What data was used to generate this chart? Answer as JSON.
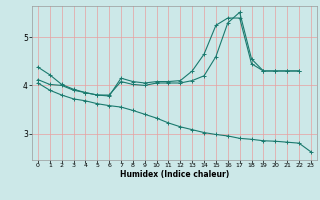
{
  "xlabel": "Humidex (Indice chaleur)",
  "bg_color": "#cce8e8",
  "grid_color": "#e8a0a0",
  "line_color": "#1a7a6e",
  "xlim": [
    -0.5,
    23.5
  ],
  "ylim": [
    2.45,
    5.65
  ],
  "yticks": [
    3,
    4,
    5
  ],
  "xticks": [
    0,
    1,
    2,
    3,
    4,
    5,
    6,
    7,
    8,
    9,
    10,
    11,
    12,
    13,
    14,
    15,
    16,
    17,
    18,
    19,
    20,
    21,
    22,
    23
  ],
  "line1_x": [
    0,
    1,
    2,
    3,
    4,
    5,
    6,
    7,
    8,
    9,
    10,
    11,
    12,
    13,
    14,
    15,
    16,
    17,
    18,
    19,
    20,
    21,
    22
  ],
  "line1_y": [
    4.38,
    4.22,
    4.02,
    3.92,
    3.85,
    3.8,
    3.78,
    4.15,
    4.08,
    4.05,
    4.08,
    4.08,
    4.1,
    4.3,
    4.65,
    5.25,
    5.4,
    5.4,
    4.45,
    4.3,
    4.3,
    4.3,
    4.3
  ],
  "line2_x": [
    0,
    1,
    2,
    3,
    4,
    5,
    6,
    7,
    8,
    9,
    10,
    11,
    12,
    13,
    14,
    15,
    16,
    17,
    18,
    19,
    20,
    21,
    22
  ],
  "line2_y": [
    4.12,
    4.02,
    4.0,
    3.9,
    3.85,
    3.8,
    3.8,
    4.08,
    4.02,
    4.0,
    4.05,
    4.05,
    4.05,
    4.1,
    4.2,
    4.6,
    5.3,
    5.52,
    4.55,
    4.3,
    4.3,
    4.3,
    4.3
  ],
  "line3_x": [
    0,
    1,
    2,
    3,
    4,
    5,
    6,
    7,
    8,
    9,
    10,
    11,
    12,
    13,
    14,
    15,
    16,
    17,
    18,
    19,
    20,
    21,
    22,
    23
  ],
  "line3_y": [
    4.05,
    3.9,
    3.8,
    3.72,
    3.68,
    3.62,
    3.58,
    3.55,
    3.48,
    3.4,
    3.32,
    3.22,
    3.14,
    3.08,
    3.02,
    2.98,
    2.95,
    2.9,
    2.88,
    2.85,
    2.84,
    2.82,
    2.8,
    2.62
  ]
}
